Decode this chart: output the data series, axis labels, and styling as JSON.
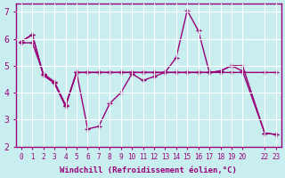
{
  "bg_color": "#c8eef0",
  "grid_color": "#ffffff",
  "line_color": "#990077",
  "xlabel": "Windchill (Refroidissement éolien,°C)",
  "xlim": [
    -0.5,
    23.5
  ],
  "ylim": [
    2,
    7.3
  ],
  "yticks": [
    2,
    3,
    4,
    5,
    6,
    7
  ],
  "xtick_positions": [
    0,
    1,
    2,
    3,
    4,
    5,
    6,
    7,
    8,
    9,
    10,
    11,
    12,
    13,
    14,
    15,
    16,
    17,
    18,
    19,
    20,
    22,
    23
  ],
  "xtick_labels": [
    "0",
    "1",
    "2",
    "3",
    "4",
    "5",
    "6",
    "7",
    "8",
    "9",
    "10",
    "11",
    "12",
    "13",
    "14",
    "15",
    "16",
    "17",
    "18",
    "19",
    "20",
    "22",
    "23"
  ],
  "line1_x": [
    0,
    1,
    2,
    3,
    4,
    5,
    6,
    7,
    8,
    9,
    10,
    11,
    12,
    13,
    14,
    15,
    16,
    17,
    18,
    19,
    20,
    22,
    23
  ],
  "line1_y": [
    5.9,
    6.15,
    4.65,
    4.35,
    3.5,
    4.75,
    4.75,
    4.75,
    4.75,
    4.75,
    4.75,
    4.75,
    4.75,
    4.75,
    4.75,
    4.75,
    4.75,
    4.75,
    4.75,
    4.75,
    4.75,
    4.75,
    4.75
  ],
  "line2_x": [
    0,
    1,
    2,
    3,
    4,
    5,
    6,
    7,
    8,
    9,
    10,
    11,
    12,
    13,
    14,
    15,
    16,
    17,
    18,
    19,
    20,
    22,
    23
  ],
  "line2_y": [
    5.9,
    6.15,
    4.65,
    4.35,
    3.5,
    4.75,
    2.65,
    2.75,
    3.6,
    4.0,
    4.7,
    4.45,
    4.6,
    4.75,
    5.3,
    7.05,
    6.3,
    4.75,
    4.8,
    5.0,
    5.0,
    2.5,
    2.45
  ],
  "line3_x": [
    0,
    1,
    2,
    3,
    4,
    5,
    6,
    7,
    8,
    9,
    10,
    11,
    12,
    13,
    14,
    15,
    16,
    17,
    18,
    19,
    20,
    22,
    23
  ],
  "line3_y": [
    5.85,
    5.85,
    4.7,
    4.4,
    3.55,
    4.75,
    4.75,
    4.75,
    4.75,
    4.75,
    4.75,
    4.75,
    4.75,
    4.75,
    4.75,
    4.75,
    4.75,
    4.75,
    4.8,
    5.0,
    4.8,
    2.5,
    2.45
  ]
}
